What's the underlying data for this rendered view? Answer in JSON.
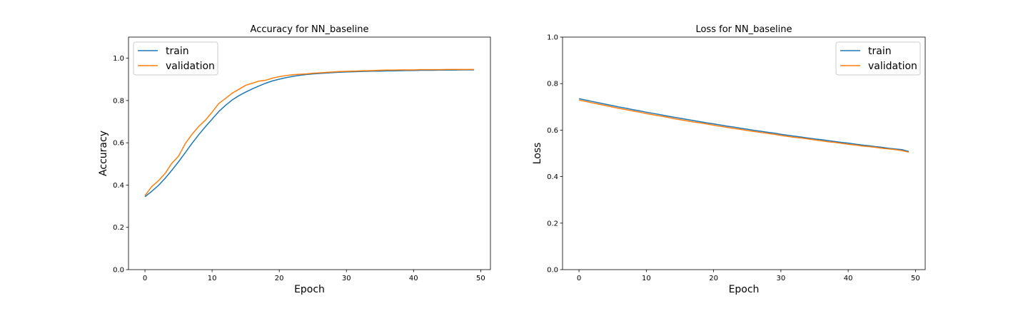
{
  "chart_data": [
    {
      "type": "line",
      "title": "Accuracy for NN_baseline",
      "xlabel": "Epoch",
      "ylabel": "Accuracy",
      "xlim": [
        -2.45,
        51.45
      ],
      "ylim": [
        0,
        1.1
      ],
      "xticks": [
        0,
        10,
        20,
        30,
        40,
        50
      ],
      "yticks": [
        0.0,
        0.2,
        0.4,
        0.6,
        0.8,
        1.0
      ],
      "xtick_labels": [
        "0",
        "10",
        "20",
        "30",
        "40",
        "50"
      ],
      "ytick_labels": [
        "0.0",
        "0.2",
        "0.4",
        "0.6",
        "0.8",
        "1.0"
      ],
      "legend_position": "upper left",
      "grid": false,
      "x": [
        0,
        1,
        2,
        3,
        4,
        5,
        6,
        7,
        8,
        9,
        10,
        11,
        12,
        13,
        14,
        15,
        16,
        17,
        18,
        19,
        20,
        21,
        22,
        23,
        24,
        25,
        26,
        27,
        28,
        29,
        30,
        31,
        32,
        33,
        34,
        35,
        36,
        37,
        38,
        39,
        40,
        41,
        42,
        43,
        44,
        45,
        46,
        47,
        48,
        49
      ],
      "series": [
        {
          "name": "train",
          "color": "#1f77b4",
          "values": [
            0.345,
            0.37,
            0.398,
            0.432,
            0.47,
            0.51,
            0.553,
            0.597,
            0.638,
            0.676,
            0.712,
            0.748,
            0.777,
            0.803,
            0.823,
            0.84,
            0.855,
            0.869,
            0.882,
            0.893,
            0.901,
            0.908,
            0.914,
            0.919,
            0.923,
            0.926,
            0.928,
            0.93,
            0.932,
            0.934,
            0.935,
            0.936,
            0.937,
            0.938,
            0.939,
            0.939,
            0.94,
            0.94,
            0.941,
            0.942,
            0.942,
            0.943,
            0.943,
            0.943,
            0.944,
            0.944,
            0.944,
            0.945,
            0.945,
            0.945
          ]
        },
        {
          "name": "validation",
          "color": "#ff7f0e",
          "values": [
            0.35,
            0.393,
            0.42,
            0.455,
            0.503,
            0.537,
            0.596,
            0.64,
            0.677,
            0.707,
            0.745,
            0.786,
            0.81,
            0.835,
            0.853,
            0.872,
            0.882,
            0.892,
            0.896,
            0.906,
            0.913,
            0.918,
            0.922,
            0.924,
            0.926,
            0.929,
            0.931,
            0.933,
            0.935,
            0.937,
            0.938,
            0.939,
            0.94,
            0.941,
            0.942,
            0.943,
            0.944,
            0.944,
            0.945,
            0.945,
            0.945,
            0.946,
            0.946,
            0.946,
            0.946,
            0.947,
            0.947,
            0.947,
            0.947,
            0.947
          ]
        }
      ]
    },
    {
      "type": "line",
      "title": "Loss for NN_baseline",
      "xlabel": "Epoch",
      "ylabel": "Loss",
      "xlim": [
        -2.45,
        51.45
      ],
      "ylim": [
        0,
        1.0
      ],
      "xticks": [
        0,
        10,
        20,
        30,
        40,
        50
      ],
      "yticks": [
        0.0,
        0.2,
        0.4,
        0.6,
        0.8,
        1.0
      ],
      "xtick_labels": [
        "0",
        "10",
        "20",
        "30",
        "40",
        "50"
      ],
      "ytick_labels": [
        "0.0",
        "0.2",
        "0.4",
        "0.6",
        "0.8",
        "1.0"
      ],
      "legend_position": "upper right",
      "grid": false,
      "x": [
        0,
        1,
        2,
        3,
        4,
        5,
        6,
        7,
        8,
        9,
        10,
        11,
        12,
        13,
        14,
        15,
        16,
        17,
        18,
        19,
        20,
        21,
        22,
        23,
        24,
        25,
        26,
        27,
        28,
        29,
        30,
        31,
        32,
        33,
        34,
        35,
        36,
        37,
        38,
        39,
        40,
        41,
        42,
        43,
        44,
        45,
        46,
        47,
        48,
        49
      ],
      "series": [
        {
          "name": "train",
          "color": "#1f77b4",
          "values": [
            0.735,
            0.729,
            0.723,
            0.717,
            0.711,
            0.705,
            0.699,
            0.694,
            0.688,
            0.683,
            0.677,
            0.672,
            0.667,
            0.661,
            0.656,
            0.651,
            0.646,
            0.641,
            0.636,
            0.631,
            0.627,
            0.622,
            0.617,
            0.613,
            0.608,
            0.604,
            0.599,
            0.595,
            0.591,
            0.587,
            0.582,
            0.578,
            0.574,
            0.57,
            0.566,
            0.562,
            0.559,
            0.555,
            0.551,
            0.547,
            0.544,
            0.54,
            0.536,
            0.533,
            0.529,
            0.526,
            0.522,
            0.519,
            0.516,
            0.508
          ]
        },
        {
          "name": "validation",
          "color": "#ff7f0e",
          "values": [
            0.729,
            0.723,
            0.717,
            0.711,
            0.705,
            0.699,
            0.693,
            0.688,
            0.682,
            0.677,
            0.671,
            0.666,
            0.661,
            0.656,
            0.65,
            0.645,
            0.64,
            0.635,
            0.631,
            0.626,
            0.621,
            0.616,
            0.612,
            0.607,
            0.603,
            0.598,
            0.594,
            0.59,
            0.586,
            0.582,
            0.577,
            0.573,
            0.569,
            0.566,
            0.562,
            0.558,
            0.554,
            0.55,
            0.547,
            0.543,
            0.539,
            0.536,
            0.532,
            0.529,
            0.526,
            0.522,
            0.519,
            0.516,
            0.512,
            0.505
          ]
        }
      ]
    }
  ]
}
